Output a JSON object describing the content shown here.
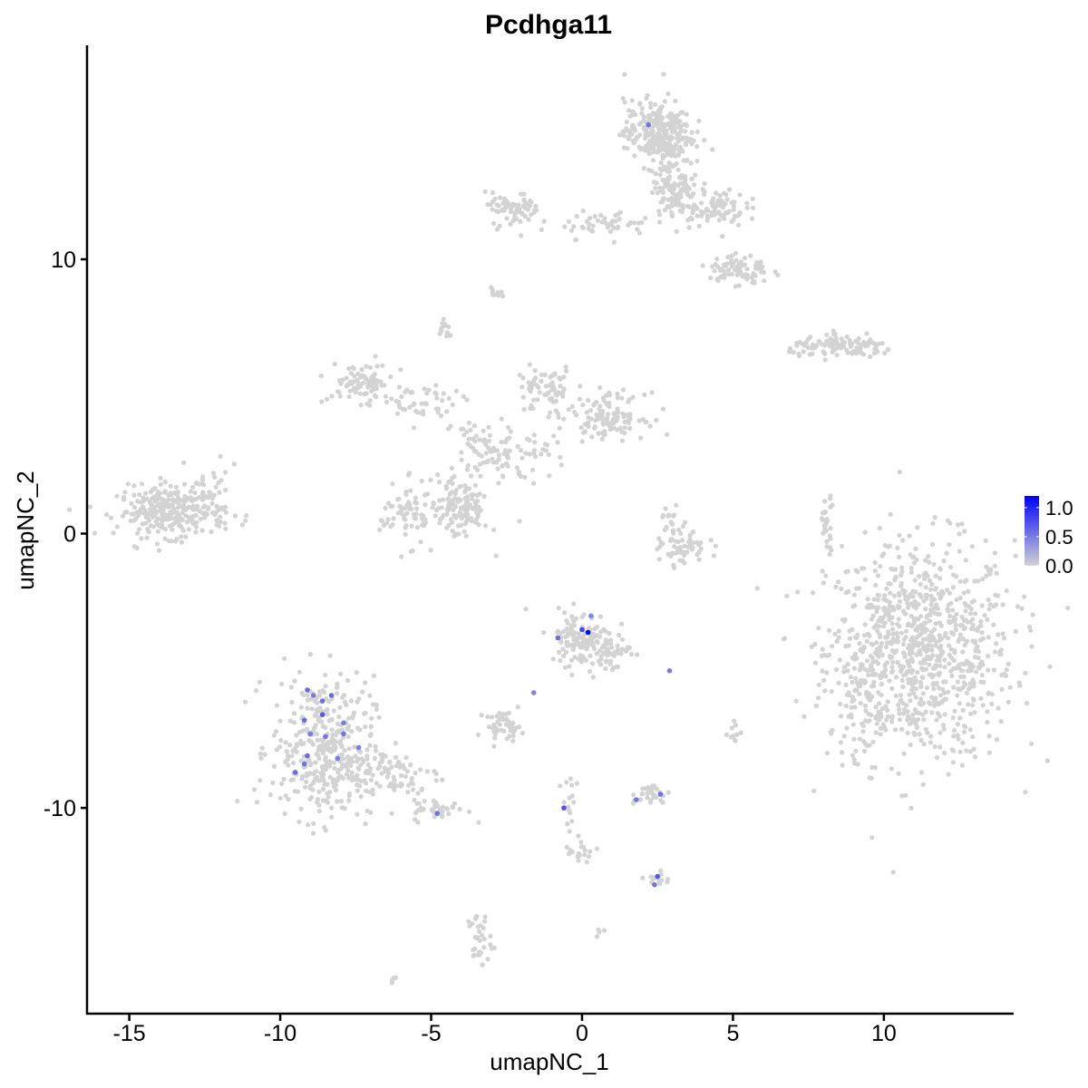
{
  "chart_data": {
    "type": "scatter",
    "title": "Pcdhga11",
    "xlabel": "umapNC_1",
    "ylabel": "umapNC_2",
    "xlim": [
      -16.4,
      14.3
    ],
    "ylim": [
      -17.5,
      17.8
    ],
    "xticks": [
      -15,
      -10,
      -5,
      0,
      5,
      10
    ],
    "xtick_labels": [
      "-15",
      "-10",
      "-5",
      "0",
      "5",
      "10"
    ],
    "yticks": [
      -10,
      0,
      10
    ],
    "ytick_labels": [
      "-10",
      "0",
      "10"
    ],
    "grid": false,
    "legend": {
      "placement": "right",
      "type": "colorbar",
      "color_low": "#d3d3d3",
      "color_high": "#0000ff",
      "range": [
        0.0,
        1.2
      ],
      "ticks": [
        1.0,
        0.5,
        0.0
      ],
      "tick_labels": [
        "1.0",
        "0.5",
        "0.0"
      ]
    },
    "background_color": "#d3d3d3",
    "clusters": [
      {
        "center": [
          11.2,
          -4.3
        ],
        "sd": [
          1.55,
          2.0
        ],
        "n": 900
      },
      {
        "center": [
          9.3,
          -5.5
        ],
        "sd": [
          0.45,
          1.3
        ],
        "n": 80
      },
      {
        "center": [
          -13.6,
          0.8
        ],
        "sd": [
          0.9,
          0.45
        ],
        "n": 280
      },
      {
        "center": [
          -12.5,
          1.5
        ],
        "sd": [
          0.6,
          0.45
        ],
        "n": 40
      },
      {
        "center": [
          -8.6,
          -7.8
        ],
        "sd": [
          0.85,
          1.3
        ],
        "n": 360
      },
      {
        "center": [
          -6.6,
          -8.8
        ],
        "sd": [
          1.0,
          0.55
        ],
        "n": 100
      },
      {
        "center": [
          -4.7,
          -10.1
        ],
        "sd": [
          0.45,
          0.2
        ],
        "n": 40
      },
      {
        "center": [
          0.0,
          -3.8
        ],
        "sd": [
          0.55,
          0.5
        ],
        "n": 130
      },
      {
        "center": [
          0.9,
          -4.4
        ],
        "sd": [
          0.35,
          0.35
        ],
        "n": 40
      },
      {
        "center": [
          -2.6,
          -7.0
        ],
        "sd": [
          0.3,
          0.25
        ],
        "n": 45
      },
      {
        "center": [
          2.3,
          -9.5
        ],
        "sd": [
          0.3,
          0.2
        ],
        "n": 30
      },
      {
        "center": [
          2.5,
          -12.6
        ],
        "sd": [
          0.2,
          0.15
        ],
        "n": 15
      },
      {
        "center": [
          -3.4,
          -14.8
        ],
        "sd": [
          0.2,
          0.5
        ],
        "n": 35
      },
      {
        "center": [
          2.5,
          14.6
        ],
        "sd": [
          0.55,
          0.6
        ],
        "n": 280
      },
      {
        "center": [
          3.1,
          12.7
        ],
        "sd": [
          0.35,
          0.55
        ],
        "n": 120
      },
      {
        "center": [
          4.3,
          11.9
        ],
        "sd": [
          0.55,
          0.35
        ],
        "n": 90
      },
      {
        "center": [
          5.2,
          9.6
        ],
        "sd": [
          0.5,
          0.3
        ],
        "n": 80
      },
      {
        "center": [
          -2.3,
          11.8
        ],
        "sd": [
          0.45,
          0.3
        ],
        "n": 70
      },
      {
        "center": [
          0.8,
          11.3
        ],
        "sd": [
          0.75,
          0.25
        ],
        "n": 50
      },
      {
        "center": [
          8.7,
          6.8
        ],
        "sd": [
          0.9,
          0.18
        ],
        "n": 120
      },
      {
        "center": [
          -1.2,
          5.2
        ],
        "sd": [
          0.5,
          0.45
        ],
        "n": 70
      },
      {
        "center": [
          0.9,
          4.3
        ],
        "sd": [
          0.6,
          0.4
        ],
        "n": 120
      },
      {
        "center": [
          -7.3,
          5.5
        ],
        "sd": [
          0.55,
          0.35
        ],
        "n": 80
      },
      {
        "center": [
          -5.4,
          4.7
        ],
        "sd": [
          0.7,
          0.35
        ],
        "n": 50
      },
      {
        "center": [
          -4.0,
          1.0
        ],
        "sd": [
          0.45,
          0.6
        ],
        "n": 140
      },
      {
        "center": [
          -5.8,
          0.7
        ],
        "sd": [
          0.45,
          0.55
        ],
        "n": 70
      },
      {
        "center": [
          -3.3,
          3.1
        ],
        "sd": [
          0.5,
          0.6
        ],
        "n": 60
      },
      {
        "center": [
          -2.0,
          2.8
        ],
        "sd": [
          0.7,
          0.4
        ],
        "n": 45
      },
      {
        "center": [
          3.4,
          -0.6
        ],
        "sd": [
          0.4,
          0.3
        ],
        "n": 55
      },
      {
        "center": [
          3.0,
          0.4
        ],
        "sd": [
          0.2,
          0.3
        ],
        "n": 20
      },
      {
        "center": [
          8.1,
          0.4
        ],
        "sd": [
          0.13,
          0.5
        ],
        "n": 30
      },
      {
        "center": [
          -4.5,
          7.5
        ],
        "sd": [
          0.12,
          0.2
        ],
        "n": 12
      },
      {
        "center": [
          -2.9,
          8.8
        ],
        "sd": [
          0.12,
          0.1
        ],
        "n": 10
      },
      {
        "center": [
          5.1,
          -7.2
        ],
        "sd": [
          0.12,
          0.2
        ],
        "n": 10
      },
      {
        "center": [
          -0.1,
          -11.6
        ],
        "sd": [
          0.25,
          0.3
        ],
        "n": 20
      },
      {
        "center": [
          -0.4,
          -9.8
        ],
        "sd": [
          0.15,
          0.5
        ],
        "n": 15
      },
      {
        "center": [
          -6.2,
          -16.3
        ],
        "sd": [
          0.08,
          0.08
        ],
        "n": 5
      },
      {
        "center": [
          0.6,
          -14.5
        ],
        "sd": [
          0.08,
          0.08
        ],
        "n": 4
      }
    ],
    "highlighted_points": [
      {
        "x": 2.2,
        "y": 14.9,
        "value": 0.55
      },
      {
        "x": -9.1,
        "y": -5.7,
        "value": 0.6
      },
      {
        "x": -8.9,
        "y": -5.9,
        "value": 0.5
      },
      {
        "x": -8.6,
        "y": -6.1,
        "value": 0.55
      },
      {
        "x": -8.3,
        "y": -5.9,
        "value": 0.6
      },
      {
        "x": -8.6,
        "y": -6.6,
        "value": 0.7
      },
      {
        "x": -9.2,
        "y": -6.8,
        "value": 0.6
      },
      {
        "x": -7.9,
        "y": -6.9,
        "value": 0.5
      },
      {
        "x": -9.0,
        "y": -7.3,
        "value": 0.5
      },
      {
        "x": -8.5,
        "y": -7.4,
        "value": 0.55
      },
      {
        "x": -7.9,
        "y": -7.3,
        "value": 0.55
      },
      {
        "x": -7.4,
        "y": -7.8,
        "value": 0.5
      },
      {
        "x": -9.1,
        "y": -8.1,
        "value": 0.6
      },
      {
        "x": -8.1,
        "y": -8.2,
        "value": 0.5
      },
      {
        "x": -9.2,
        "y": -8.4,
        "value": 0.55
      },
      {
        "x": -9.5,
        "y": -8.7,
        "value": 0.6
      },
      {
        "x": -4.8,
        "y": -10.2,
        "value": 0.55
      },
      {
        "x": 0.0,
        "y": -3.5,
        "value": 0.8
      },
      {
        "x": 0.2,
        "y": -3.6,
        "value": 1.2
      },
      {
        "x": -0.8,
        "y": -3.8,
        "value": 0.6
      },
      {
        "x": 0.3,
        "y": -3.0,
        "value": 0.45
      },
      {
        "x": 2.9,
        "y": -5.0,
        "value": 0.5
      },
      {
        "x": -1.6,
        "y": -5.8,
        "value": 0.45
      },
      {
        "x": -0.6,
        "y": -10.0,
        "value": 0.75
      },
      {
        "x": 1.8,
        "y": -9.7,
        "value": 0.55
      },
      {
        "x": 2.6,
        "y": -9.5,
        "value": 0.55
      },
      {
        "x": 2.5,
        "y": -12.5,
        "value": 0.7
      },
      {
        "x": 2.4,
        "y": -12.8,
        "value": 0.55
      }
    ]
  }
}
